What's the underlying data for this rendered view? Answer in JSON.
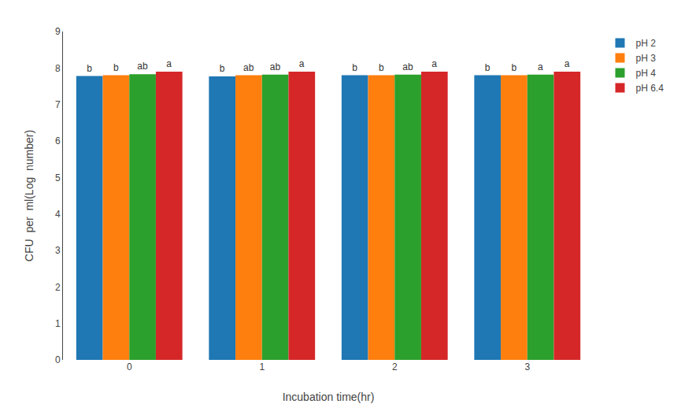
{
  "chart_data": {
    "type": "bar",
    "xlabel": "Incubation time(hr)",
    "ylabel": "CFU  per  ml(Log  number)",
    "categories": [
      "0",
      "1",
      "2",
      "3"
    ],
    "series": [
      {
        "name": "pH 2",
        "values": [
          7.78,
          7.77,
          7.8,
          7.8
        ],
        "annotations": [
          "b",
          "b",
          "b",
          "b"
        ]
      },
      {
        "name": "pH 3",
        "values": [
          7.8,
          7.8,
          7.8,
          7.8
        ],
        "annotations": [
          "b",
          "ab",
          "b",
          "b"
        ]
      },
      {
        "name": "pH 4",
        "values": [
          7.83,
          7.82,
          7.82,
          7.82
        ],
        "annotations": [
          "ab",
          "ab",
          "ab",
          "a"
        ]
      },
      {
        "name": "pH 6.4",
        "values": [
          7.9,
          7.9,
          7.9,
          7.9
        ],
        "annotations": [
          "a",
          "a",
          "a",
          "a"
        ]
      }
    ],
    "ylim": [
      0,
      9
    ],
    "yticks": [
      0,
      1,
      2,
      3,
      4,
      5,
      6,
      7,
      8,
      9
    ],
    "grid": false,
    "legend": "upper right"
  }
}
